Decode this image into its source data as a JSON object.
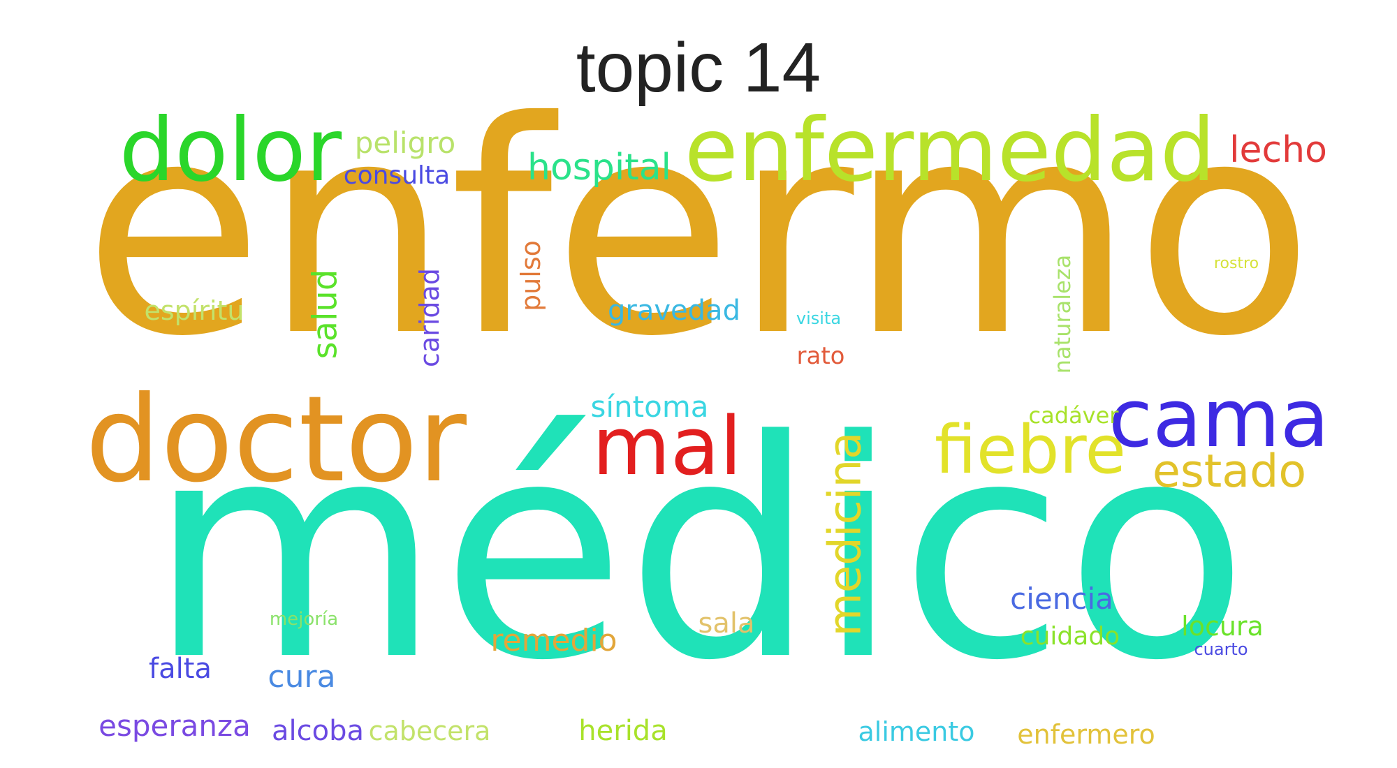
{
  "title": "topic 14",
  "words": [
    {
      "text": "enfermo",
      "color": "#E2A61F"
    },
    {
      "text": "médico",
      "color": "#1FE2B8"
    },
    {
      "text": "doctor",
      "color": "#E29322"
    },
    {
      "text": "dolor",
      "color": "#2AD62A"
    },
    {
      "text": "enfermedad",
      "color": "#B8E22A"
    },
    {
      "text": "cama",
      "color": "#3D2AE2"
    },
    {
      "text": "mal",
      "color": "#E21F1F"
    },
    {
      "text": "fiebre",
      "color": "#E2E22A"
    },
    {
      "text": "estado",
      "color": "#E2C22A"
    },
    {
      "text": "medicina",
      "color": "#E2D62A",
      "vertical": true
    },
    {
      "text": "hospital",
      "color": "#2AE28A"
    },
    {
      "text": "lecho",
      "color": "#E23A3A"
    },
    {
      "text": "peligro",
      "color": "#B8E26A"
    },
    {
      "text": "consulta",
      "color": "#4A4AE2"
    },
    {
      "text": "salud",
      "color": "#5AE22A",
      "vertical": true
    },
    {
      "text": "caridad",
      "color": "#6A4AE2",
      "vertical": true
    },
    {
      "text": "pulso",
      "color": "#E27A3A",
      "vertical": true
    },
    {
      "text": "gravedad",
      "color": "#3AB8E2"
    },
    {
      "text": "espíritu",
      "color": "#C2E26A"
    },
    {
      "text": "visita",
      "color": "#3AD6E2"
    },
    {
      "text": "rato",
      "color": "#E25A3A"
    },
    {
      "text": "naturaleza",
      "color": "#A8E26A",
      "vertical": true
    },
    {
      "text": "rostro",
      "color": "#D6E23A"
    },
    {
      "text": "síntoma",
      "color": "#3AD6E2"
    },
    {
      "text": "cadáver",
      "color": "#A8E22A"
    },
    {
      "text": "ciencia",
      "color": "#4A6AE2"
    },
    {
      "text": "locura",
      "color": "#6AE22A"
    },
    {
      "text": "cuidado",
      "color": "#8AE22A"
    },
    {
      "text": "cuarto",
      "color": "#4A4AE2"
    },
    {
      "text": "remedio",
      "color": "#E2A63A"
    },
    {
      "text": "sala",
      "color": "#E2C26A"
    },
    {
      "text": "mejoría",
      "color": "#8AE26A"
    },
    {
      "text": "falta",
      "color": "#4A4AE2"
    },
    {
      "text": "cura",
      "color": "#4A8AE2"
    },
    {
      "text": "esperanza",
      "color": "#7A4AE2"
    },
    {
      "text": "alcoba",
      "color": "#6A4AE2"
    },
    {
      "text": "cabecera",
      "color": "#C2E26A"
    },
    {
      "text": "herida",
      "color": "#A8E22A"
    },
    {
      "text": "alimento",
      "color": "#3ACAE2"
    },
    {
      "text": "enfermero",
      "color": "#E2C23A"
    }
  ]
}
